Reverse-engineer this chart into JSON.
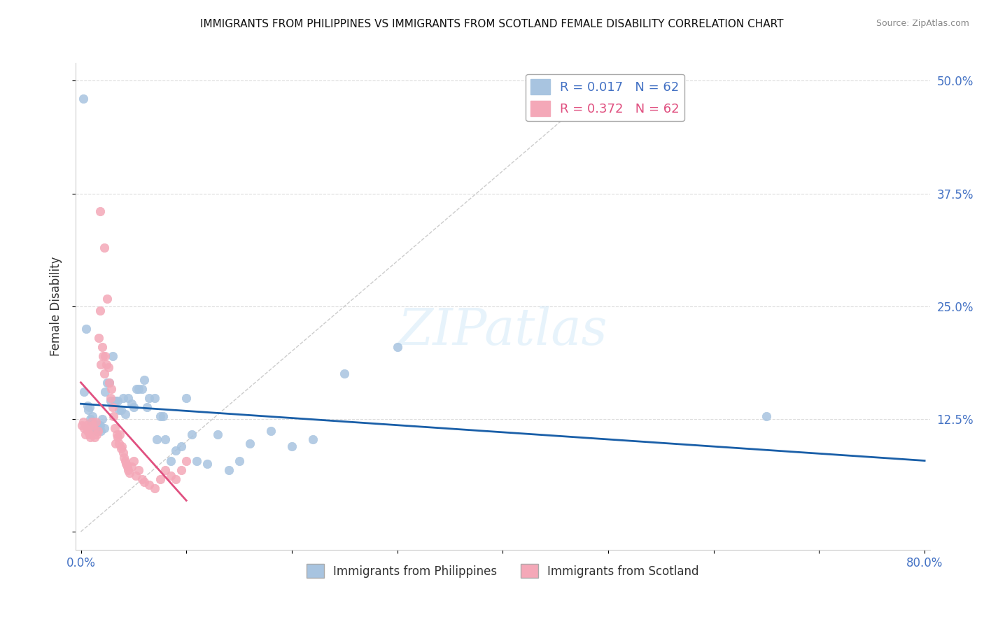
{
  "title": "IMMIGRANTS FROM PHILIPPINES VS IMMIGRANTS FROM SCOTLAND FEMALE DISABILITY CORRELATION CHART",
  "source": "Source: ZipAtlas.com",
  "xlabel": "",
  "ylabel": "Female Disability",
  "xlim": [
    0.0,
    0.8
  ],
  "ylim": [
    -0.02,
    0.52
  ],
  "xticks": [
    0.0,
    0.1,
    0.2,
    0.3,
    0.4,
    0.5,
    0.6,
    0.7,
    0.8
  ],
  "xticklabels": [
    "0.0%",
    "",
    "",
    "",
    "",
    "",
    "",
    "",
    "80.0%"
  ],
  "yticks": [
    0.0,
    0.125,
    0.25,
    0.375,
    0.5
  ],
  "yticklabels": [
    "",
    "12.5%",
    "25.0%",
    "37.5%",
    "50.0%"
  ],
  "R_philippines": 0.017,
  "N_philippines": 62,
  "R_scotland": 0.372,
  "N_scotland": 62,
  "color_philippines": "#a8c4e0",
  "color_scotland": "#f4a8b8",
  "line_philippines": "#1a5fa8",
  "line_scotland": "#e05080",
  "watermark": "ZIPatlas",
  "philippines_x": [
    0.002,
    0.003,
    0.005,
    0.006,
    0.007,
    0.008,
    0.009,
    0.01,
    0.011,
    0.012,
    0.013,
    0.014,
    0.015,
    0.016,
    0.017,
    0.018,
    0.019,
    0.02,
    0.022,
    0.023,
    0.025,
    0.027,
    0.028,
    0.03,
    0.032,
    0.033,
    0.035,
    0.036,
    0.038,
    0.04,
    0.042,
    0.045,
    0.048,
    0.05,
    0.053,
    0.055,
    0.058,
    0.06,
    0.063,
    0.065,
    0.07,
    0.072,
    0.075,
    0.078,
    0.08,
    0.085,
    0.09,
    0.095,
    0.1,
    0.105,
    0.11,
    0.12,
    0.13,
    0.14,
    0.15,
    0.16,
    0.18,
    0.2,
    0.22,
    0.25,
    0.3,
    0.65
  ],
  "philippines_y": [
    0.48,
    0.155,
    0.225,
    0.14,
    0.135,
    0.138,
    0.125,
    0.122,
    0.128,
    0.118,
    0.12,
    0.115,
    0.112,
    0.118,
    0.115,
    0.118,
    0.112,
    0.125,
    0.115,
    0.155,
    0.165,
    0.165,
    0.145,
    0.195,
    0.145,
    0.145,
    0.145,
    0.135,
    0.135,
    0.148,
    0.13,
    0.148,
    0.142,
    0.138,
    0.158,
    0.158,
    0.158,
    0.168,
    0.138,
    0.148,
    0.148,
    0.102,
    0.128,
    0.128,
    0.102,
    0.078,
    0.09,
    0.095,
    0.148,
    0.108,
    0.078,
    0.075,
    0.108,
    0.068,
    0.078,
    0.098,
    0.112,
    0.095,
    0.102,
    0.175,
    0.205,
    0.128
  ],
  "scotland_x": [
    0.001,
    0.002,
    0.003,
    0.004,
    0.005,
    0.006,
    0.007,
    0.008,
    0.009,
    0.01,
    0.011,
    0.012,
    0.013,
    0.014,
    0.015,
    0.016,
    0.017,
    0.018,
    0.019,
    0.02,
    0.021,
    0.022,
    0.023,
    0.024,
    0.025,
    0.026,
    0.027,
    0.028,
    0.029,
    0.03,
    0.031,
    0.032,
    0.033,
    0.034,
    0.035,
    0.036,
    0.037,
    0.038,
    0.039,
    0.04,
    0.041,
    0.042,
    0.043,
    0.044,
    0.045,
    0.046,
    0.048,
    0.05,
    0.052,
    0.055,
    0.058,
    0.06,
    0.065,
    0.07,
    0.075,
    0.08,
    0.085,
    0.09,
    0.095,
    0.1,
    0.018,
    0.022
  ],
  "scotland_y": [
    0.118,
    0.122,
    0.115,
    0.108,
    0.118,
    0.112,
    0.115,
    0.108,
    0.105,
    0.122,
    0.118,
    0.115,
    0.105,
    0.122,
    0.108,
    0.112,
    0.215,
    0.245,
    0.185,
    0.205,
    0.195,
    0.175,
    0.195,
    0.185,
    0.258,
    0.182,
    0.165,
    0.148,
    0.158,
    0.138,
    0.128,
    0.115,
    0.098,
    0.108,
    0.105,
    0.098,
    0.108,
    0.092,
    0.095,
    0.088,
    0.082,
    0.078,
    0.075,
    0.072,
    0.068,
    0.065,
    0.072,
    0.078,
    0.062,
    0.068,
    0.058,
    0.055,
    0.052,
    0.048,
    0.058,
    0.068,
    0.062,
    0.058,
    0.068,
    0.078,
    0.355,
    0.315
  ]
}
